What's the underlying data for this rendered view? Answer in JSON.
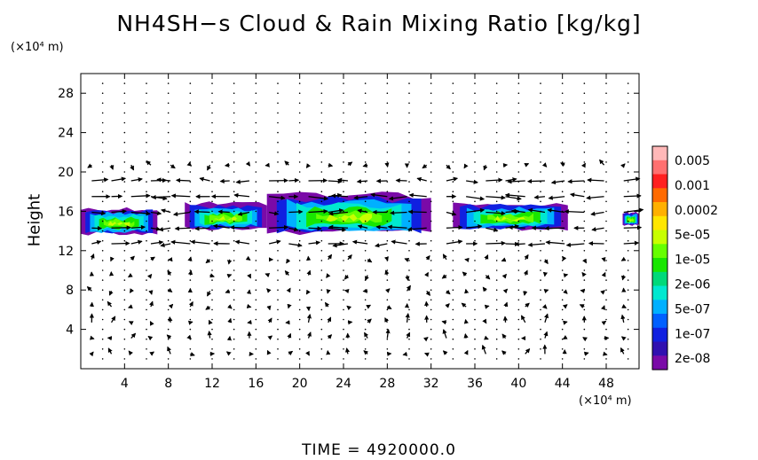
{
  "chart_data": {
    "type": "heatmap",
    "title": "NH4SH−s Cloud & Rain Mixing Ratio [kg/kg]",
    "ylabel": "Height",
    "y_unit": "(×10⁴ m)",
    "x_unit": "(×10⁴ m)",
    "xlim": [
      0,
      51
    ],
    "ylim": [
      0,
      30
    ],
    "x_ticks": [
      4,
      8,
      12,
      16,
      20,
      24,
      28,
      32,
      36,
      40,
      44,
      48
    ],
    "y_ticks": [
      4,
      8,
      12,
      16,
      20,
      24,
      28
    ],
    "colorbar": {
      "labels": [
        "0.005",
        "0.001",
        "0.0002",
        "5e-05",
        "1e-05",
        "2e-06",
        "5e-07",
        "1e-07",
        "2e-08"
      ],
      "colors": [
        "#ffb8b8",
        "#ff7070",
        "#ff2020",
        "#ff6a00",
        "#ffb000",
        "#ffe600",
        "#c8ff00",
        "#66ff00",
        "#18e600",
        "#00d97a",
        "#00e8d0",
        "#00b0ff",
        "#0060ff",
        "#1020e0",
        "#3010b0",
        "#7a0aa8"
      ]
    },
    "cloud_regions": [
      {
        "x": [
          -1,
          7
        ],
        "y": [
          13.5,
          16.5
        ]
      },
      {
        "x": [
          9.5,
          17
        ],
        "y": [
          14,
          17
        ]
      },
      {
        "x": [
          17,
          32
        ],
        "y": [
          13.5,
          18
        ]
      },
      {
        "x": [
          34,
          44.5
        ],
        "y": [
          14,
          17
        ]
      },
      {
        "x": [
          49.5,
          51
        ],
        "y": [
          14.5,
          16
        ]
      }
    ],
    "wind_field": "arrow vectors overlaid on grid",
    "grid": true
  },
  "footer": "TIME  =  4920000.0"
}
